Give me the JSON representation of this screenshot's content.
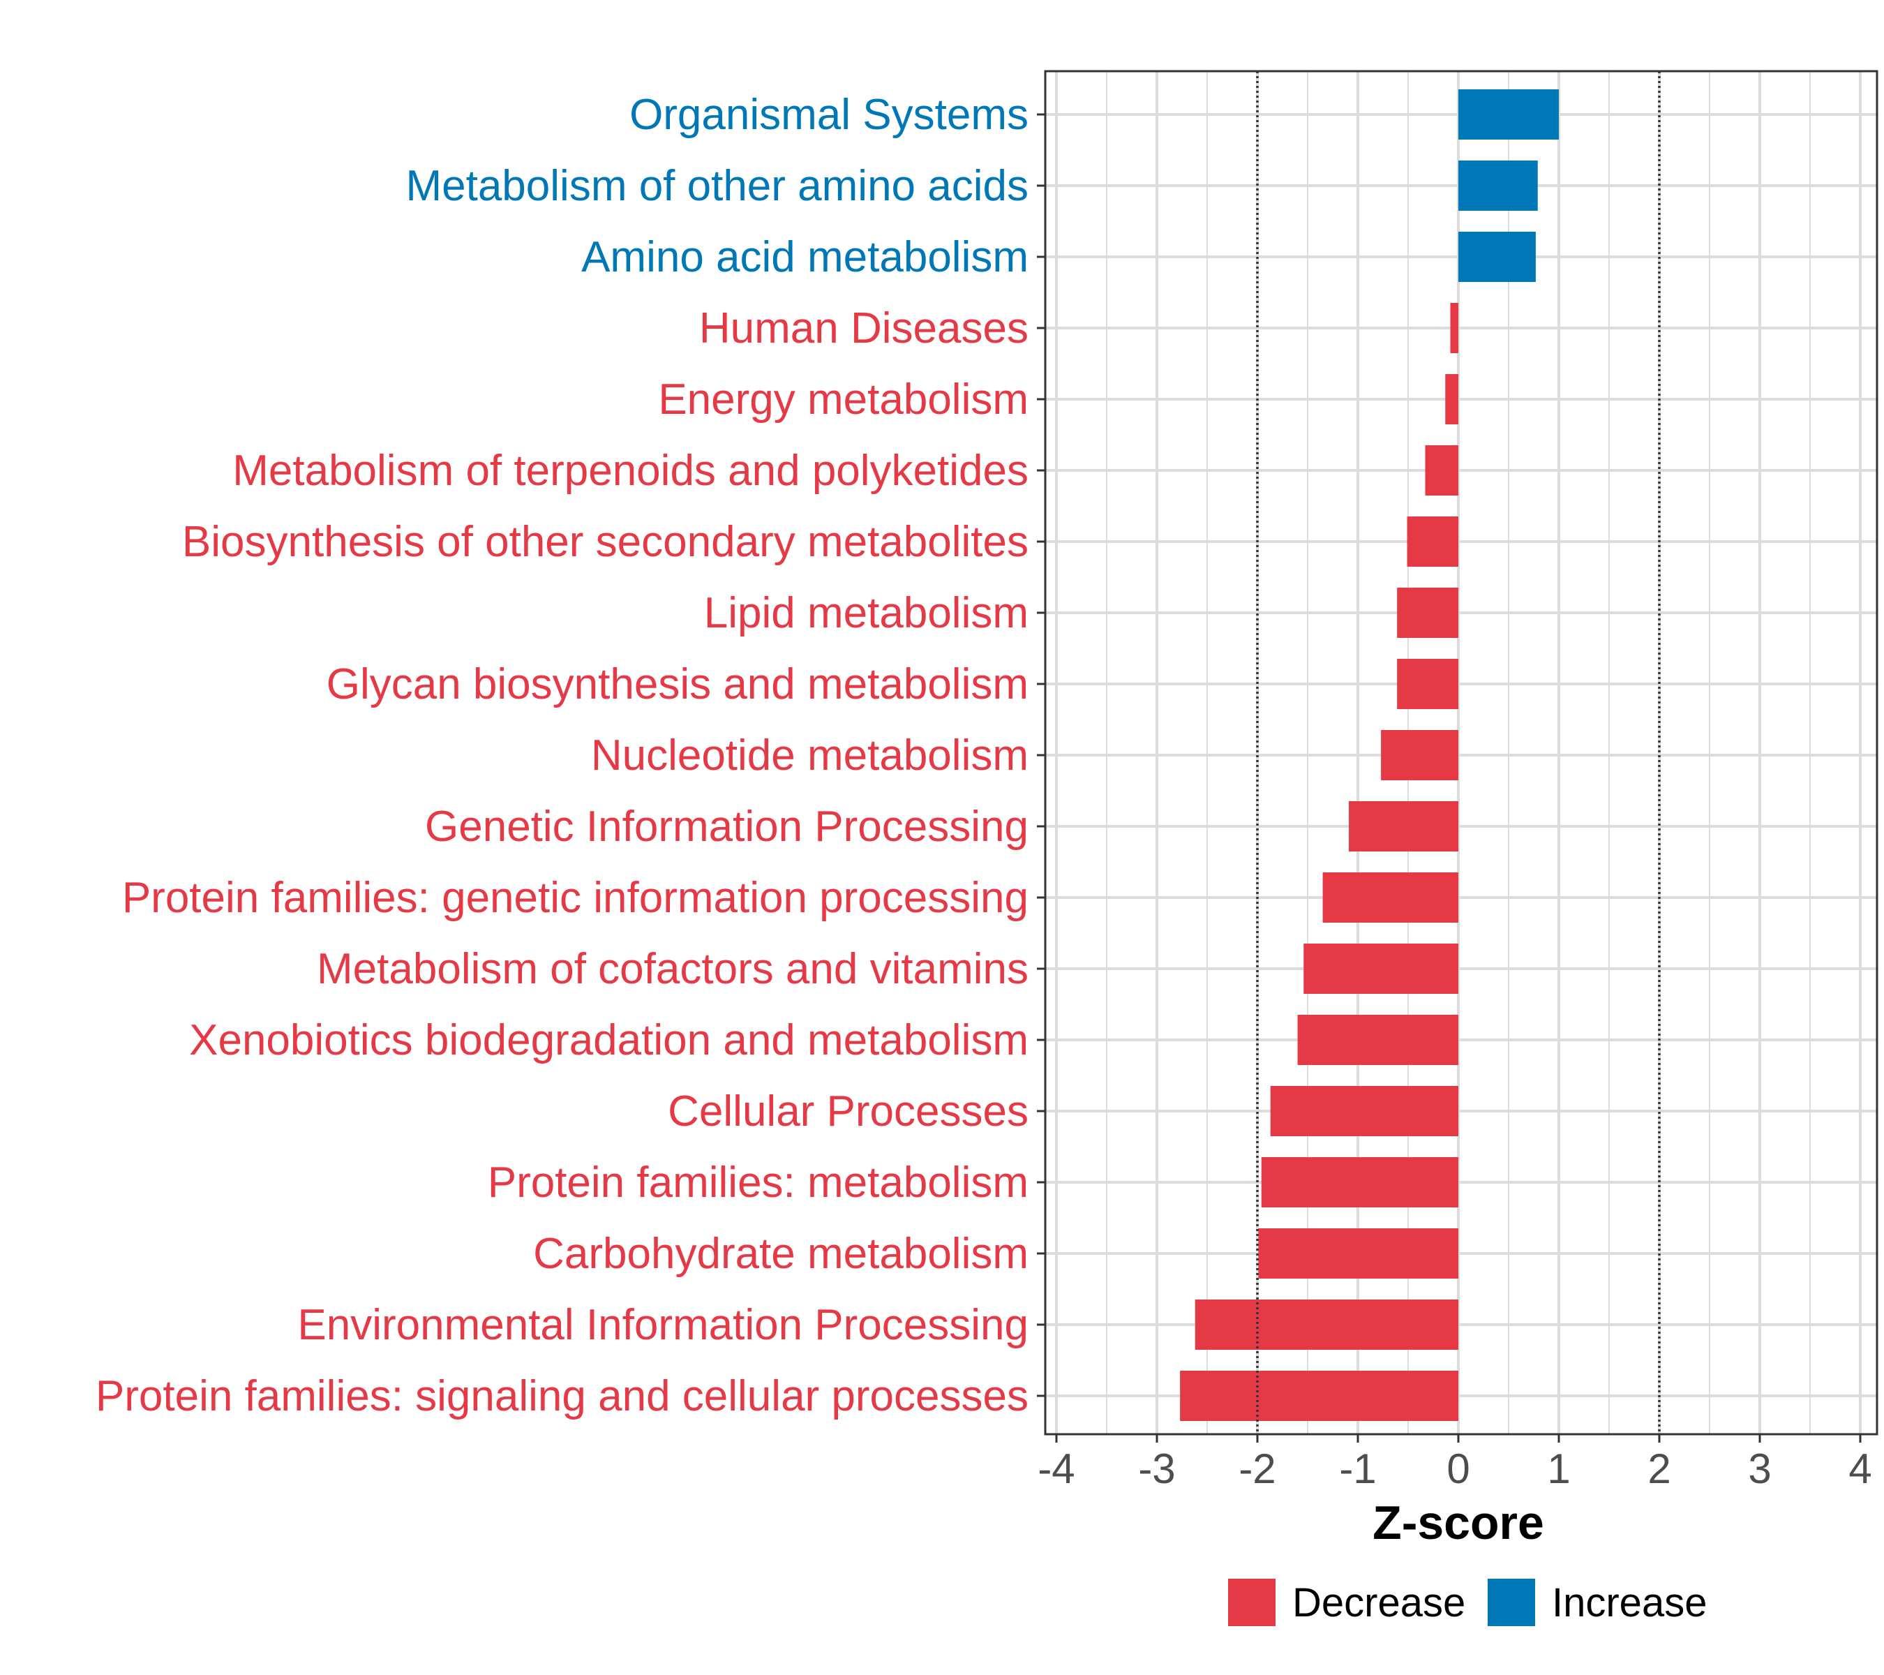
{
  "chart_data": {
    "type": "bar",
    "orientation": "horizontal",
    "title": "",
    "xlabel": "Z-score",
    "ylabel": "",
    "xlim": [
      -4.1,
      4.1
    ],
    "xticks": [
      -4,
      -3,
      -2,
      -1,
      0,
      1,
      2,
      3,
      4
    ],
    "xtick_labels": [
      "-4",
      "-3",
      "-2",
      "-1",
      "0",
      "1",
      "2",
      "3",
      "4"
    ],
    "reference_lines": [
      -2,
      2
    ],
    "grid": true,
    "categories": [
      "Organismal Systems",
      "Metabolism of other amino acids",
      "Amino acid metabolism",
      "Human Diseases",
      "Energy metabolism",
      "Metabolism of terpenoids and polyketides",
      "Biosynthesis of other secondary metabolites",
      "Lipid metabolism",
      "Glycan biosynthesis and metabolism",
      "Nucleotide metabolism",
      "Genetic Information Processing",
      "Protein families: genetic information processing",
      "Metabolism of cofactors and vitamins",
      "Xenobiotics biodegradation and metabolism",
      "Cellular Processes",
      "Protein families: metabolism",
      "Carbohydrate metabolism",
      "Environmental Information Processing",
      "Protein families: signaling and cellular processes"
    ],
    "values": [
      1.0,
      0.79,
      0.77,
      -0.08,
      -0.13,
      -0.33,
      -0.51,
      -0.61,
      -0.61,
      -0.77,
      -1.09,
      -1.35,
      -1.54,
      -1.6,
      -1.87,
      -1.96,
      -1.99,
      -2.62,
      -2.77
    ],
    "groups": [
      "Increase",
      "Increase",
      "Increase",
      "Decrease",
      "Decrease",
      "Decrease",
      "Decrease",
      "Decrease",
      "Decrease",
      "Decrease",
      "Decrease",
      "Decrease",
      "Decrease",
      "Decrease",
      "Decrease",
      "Decrease",
      "Decrease",
      "Decrease",
      "Decrease"
    ],
    "legend": [
      {
        "label": "Decrease",
        "color": "#E63946"
      },
      {
        "label": "Increase",
        "color": "#0077B6"
      }
    ],
    "legend_position": "bottom",
    "colors": {
      "Decrease": "#E63946",
      "Increase": "#0077B6"
    }
  }
}
